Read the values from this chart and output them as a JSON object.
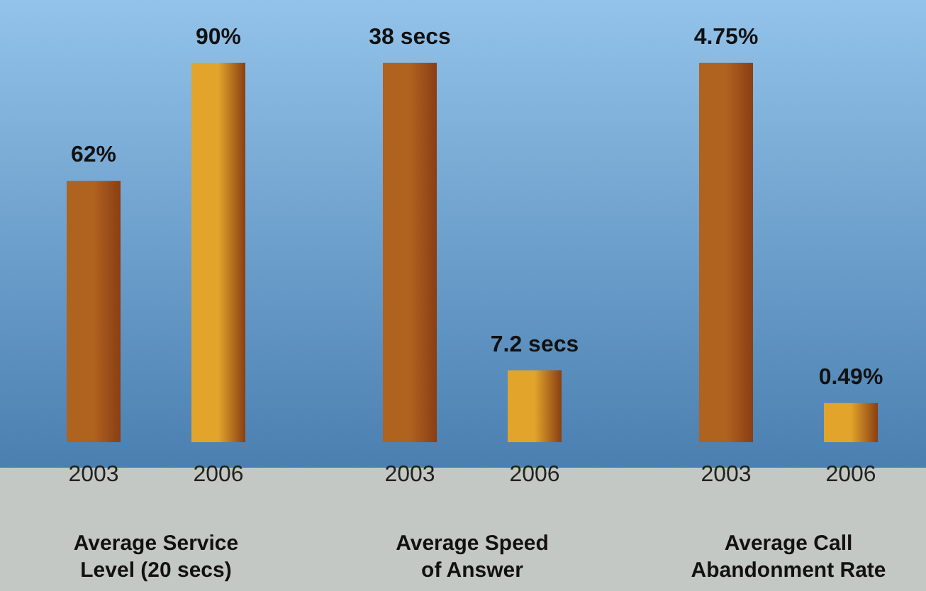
{
  "chart_data": [
    {
      "type": "bar",
      "categories": [
        "2003",
        "2006"
      ],
      "values": [
        62,
        90
      ],
      "colors": [
        "#b0621f",
        "#e2a42a"
      ],
      "value_labels": [
        "62%",
        "90%"
      ],
      "xlabel": "Average Service Level (20 secs)"
    },
    {
      "type": "bar",
      "categories": [
        "2003",
        "2006"
      ],
      "values": [
        38,
        7.2
      ],
      "colors": [
        "#b0621f",
        "#e2a42a"
      ],
      "value_labels": [
        "38 secs",
        "7.2 secs"
      ],
      "xlabel": "Average Speed of Answer"
    },
    {
      "type": "bar",
      "categories": [
        "2003",
        "2006"
      ],
      "values": [
        4.75,
        0.49
      ],
      "colors": [
        "#b0621f",
        "#e2a42a"
      ],
      "value_labels": [
        "4.75%",
        "0.49%"
      ],
      "xlabel": "Average Call Abandonment Rate"
    }
  ]
}
